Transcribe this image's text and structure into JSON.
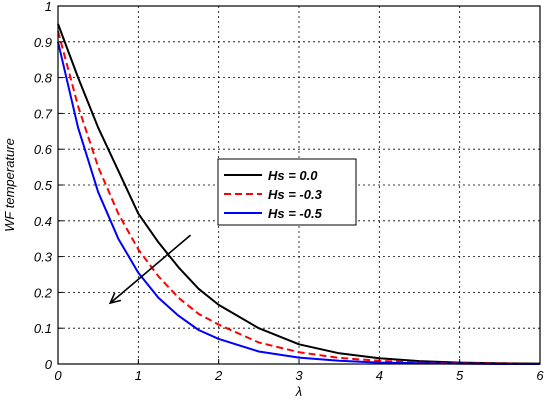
{
  "chart_data": {
    "type": "line",
    "title": "",
    "xlabel": "λ",
    "ylabel": "WF temperature",
    "xlim": [
      0,
      6
    ],
    "ylim": [
      0,
      1
    ],
    "xticks": [
      "0",
      "1",
      "2",
      "3",
      "4",
      "5",
      "6"
    ],
    "yticks": [
      "0",
      "0.1",
      "0.2",
      "0.3",
      "0.4",
      "0.5",
      "0.6",
      "0.7",
      "0.8",
      "0.9",
      "1"
    ],
    "grid": true,
    "legend_position": "center",
    "series": [
      {
        "name": "Hs = 0.0",
        "color": "#000000",
        "dash": "solid",
        "x": [
          0,
          0.25,
          0.5,
          0.75,
          1,
          1.25,
          1.5,
          1.75,
          2,
          2.5,
          3,
          3.5,
          4,
          4.5,
          5,
          5.5,
          6
        ],
        "y": [
          0.95,
          0.8,
          0.66,
          0.54,
          0.42,
          0.34,
          0.27,
          0.21,
          0.165,
          0.1,
          0.055,
          0.03,
          0.016,
          0.008,
          0.004,
          0.002,
          0.001
        ]
      },
      {
        "name": "Hs = -0.3",
        "color": "#ff0000",
        "dash": "dashed",
        "x": [
          0,
          0.25,
          0.5,
          0.75,
          1,
          1.25,
          1.5,
          1.75,
          2,
          2.5,
          3,
          3.5,
          4,
          4.5,
          5,
          5.5,
          6
        ],
        "y": [
          0.93,
          0.72,
          0.55,
          0.42,
          0.32,
          0.245,
          0.185,
          0.14,
          0.11,
          0.06,
          0.033,
          0.017,
          0.009,
          0.004,
          0.002,
          0.001,
          0.0
        ]
      },
      {
        "name": "Hs = -0.5",
        "color": "#0000ff",
        "dash": "solid",
        "x": [
          0,
          0.25,
          0.5,
          0.75,
          1,
          1.25,
          1.5,
          1.75,
          2,
          2.5,
          3,
          3.5,
          4,
          4.5,
          5,
          5.5,
          6
        ],
        "y": [
          0.9,
          0.66,
          0.48,
          0.35,
          0.255,
          0.185,
          0.135,
          0.095,
          0.07,
          0.035,
          0.018,
          0.009,
          0.004,
          0.002,
          0.001,
          0.0,
          0.0
        ]
      }
    ],
    "annotation": {
      "type": "arrow",
      "from": [
        1.65,
        0.36
      ],
      "to": [
        0.65,
        0.17
      ]
    }
  }
}
